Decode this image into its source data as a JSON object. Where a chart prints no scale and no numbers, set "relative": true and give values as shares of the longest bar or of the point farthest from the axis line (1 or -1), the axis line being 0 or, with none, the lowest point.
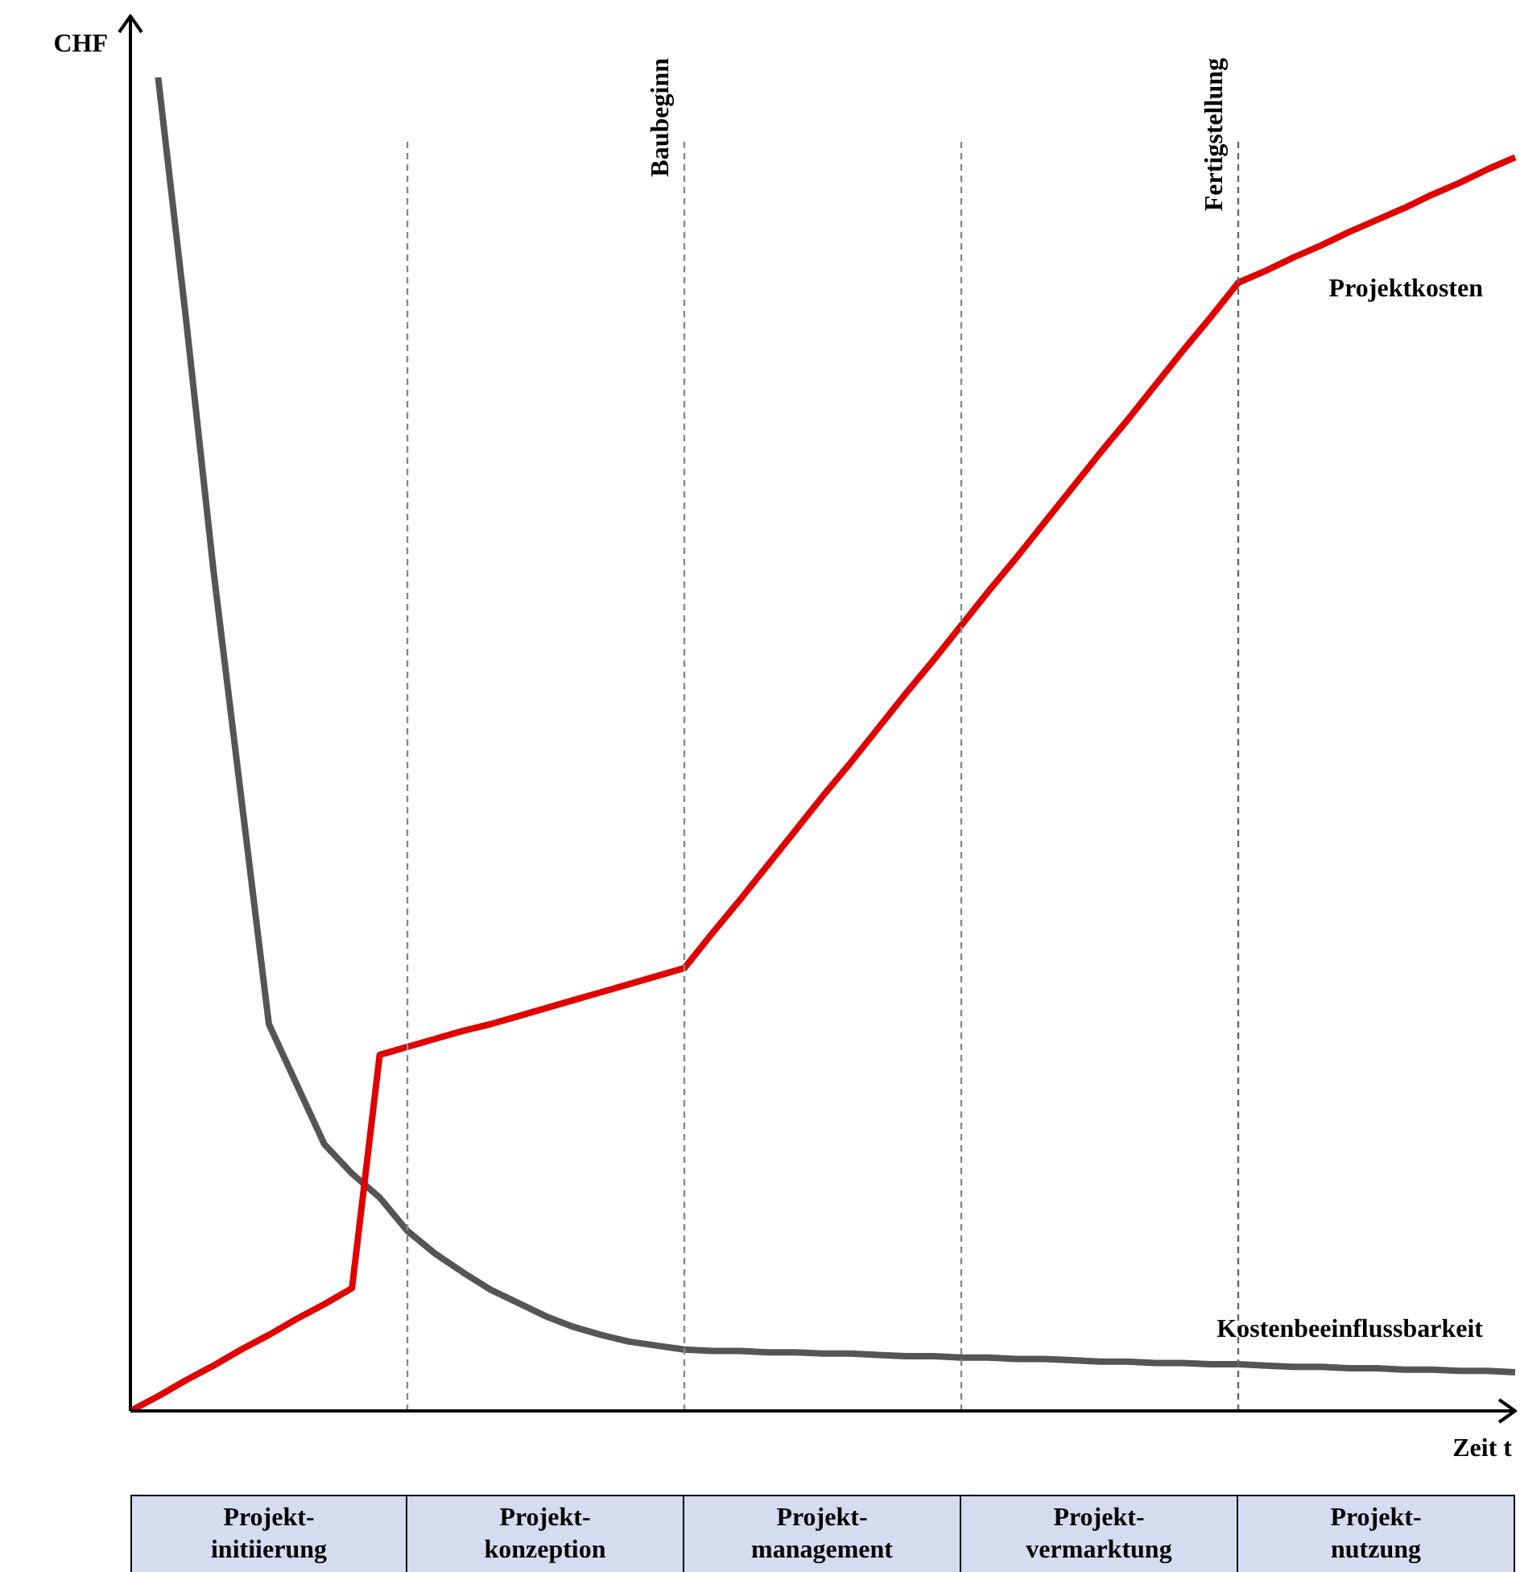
{
  "chart_data": {
    "type": "line",
    "relative": true,
    "ylabel": "CHF",
    "xlabel": "Zeit t",
    "legend": false,
    "grid": "x",
    "marker": "none",
    "line_style": "solid",
    "categories": [
      null,
      null,
      null,
      null,
      null,
      null,
      null,
      null,
      null,
      null,
      null,
      null,
      null,
      null,
      null,
      null,
      null,
      null,
      null,
      null,
      null,
      null,
      null,
      null,
      null,
      null,
      null,
      null,
      null,
      null,
      null,
      null,
      null,
      null,
      null,
      null,
      null,
      null,
      null,
      null,
      null,
      null,
      null,
      null,
      null,
      null,
      null,
      null,
      null,
      null,
      null
    ],
    "series": [
      {
        "name": "Projektkosten",
        "color": "#e00000",
        "values": [
          0,
          0.011,
          0.023,
          0.034,
          0.046,
          0.057,
          0.069,
          0.08,
          0.092,
          0.267,
          0.273,
          0.279,
          0.285,
          0.29,
          0.296,
          0.302,
          0.308,
          0.314,
          0.32,
          0.326,
          0.332,
          0.358,
          0.383,
          0.409,
          0.435,
          0.461,
          0.486,
          0.512,
          0.538,
          0.563,
          0.589,
          0.615,
          0.64,
          0.666,
          0.692,
          0.718,
          0.743,
          0.769,
          0.795,
          0.82,
          0.846,
          0.855,
          0.865,
          0.874,
          0.884,
          0.893,
          0.902,
          0.912,
          0.921,
          0.931,
          0.94
        ]
      },
      {
        "name": "Kostenbeeinflussbarkeit",
        "color": "#555555",
        "values": [
          null,
          1,
          0.82,
          0.63,
          0.46,
          0.29,
          0.245,
          0.2,
          0.178,
          0.16,
          0.135,
          0.118,
          0.104,
          0.091,
          0.081,
          0.071,
          0.063,
          0.057,
          0.052,
          0.049,
          0.046,
          0.045,
          0.045,
          0.044,
          0.044,
          0.043,
          0.043,
          0.042,
          0.041,
          0.041,
          0.04,
          0.04,
          0.039,
          0.039,
          0.038,
          0.037,
          0.037,
          0.036,
          0.036,
          0.035,
          0.035,
          0.034,
          0.033,
          0.033,
          0.032,
          0.032,
          0.031,
          0.031,
          0.03,
          0.03,
          0.029
        ]
      }
    ],
    "annotations": [
      "Projekt-\ninitiierung",
      "Projekt-\nkonzeption",
      "Projekt-\nmanagement",
      "Projekt-\nvermarktung",
      "Projekt-\nnutzung",
      "Baubeginn",
      "Fertigstellung"
    ]
  }
}
